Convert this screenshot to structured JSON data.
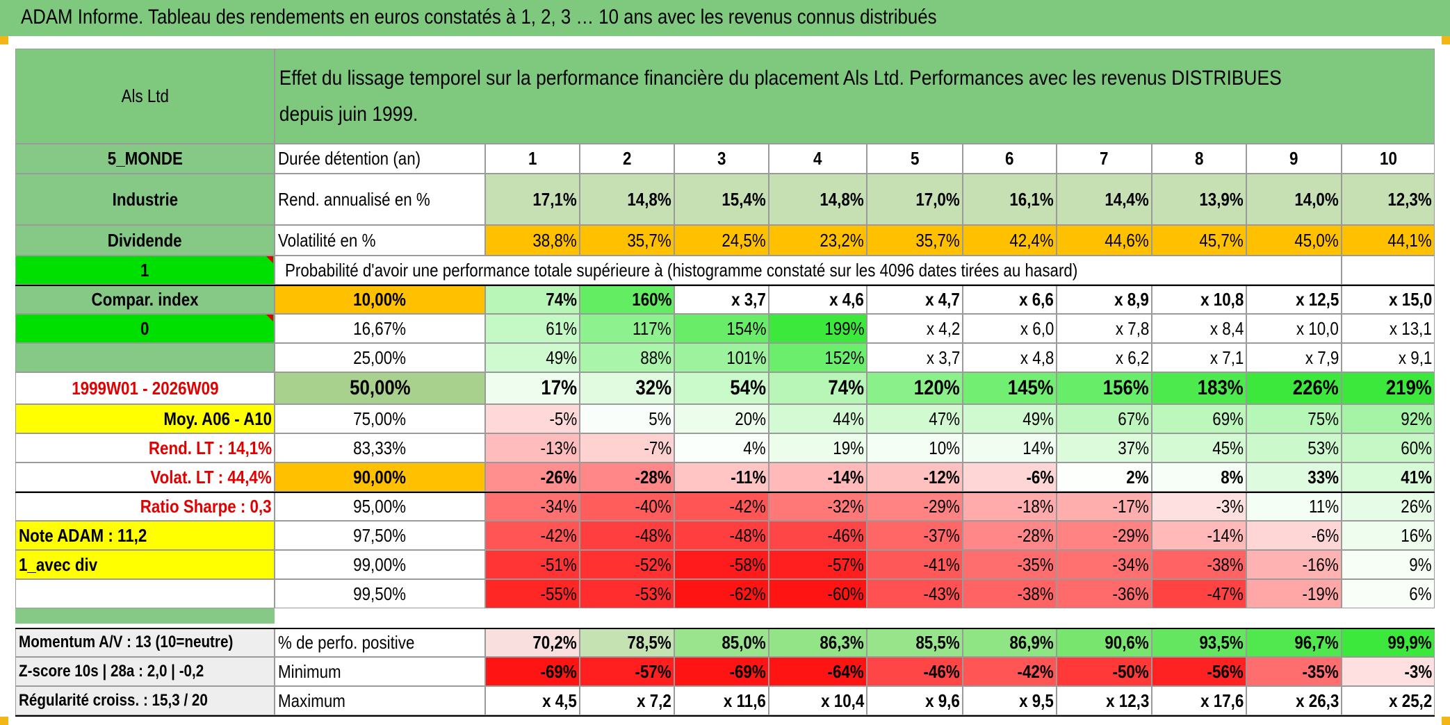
{
  "header": {
    "title": "ADAM Informe. Tableau des rendements en euros constatés à 1, 2, 3 … 10 ans avec les revenus connus distribués",
    "description": "Effet du lissage temporel sur la performance financière du placement Als Ltd. Performances avec les revenus DISTRIBUES depuis juin 1999."
  },
  "left": {
    "name": "Als Ltd",
    "region": "5_MONDE",
    "sector": "Industrie",
    "div_type": "Dividende",
    "flag1": "1",
    "compar": "Compar. index",
    "flag0": "0",
    "period": "1999W01 - 2026W09",
    "moy": "Moy. A06 - A10",
    "rend_lt": "Rend. LT :   14,1%",
    "volat_lt": "Volat. LT :   44,4%",
    "sharpe": "Ratio Sharpe :    0,3",
    "note": "Note ADAM : 11,2",
    "avec_div": "1_avec div",
    "momentum": "Momentum A/V : 13 (10=neutre)",
    "zscore": "Z-score 10s | 28a : 2,0 | -0,2",
    "regularite": "Régularité croiss. : 15,3 / 20"
  },
  "rows": {
    "duree_label": "Durée détention (an)",
    "years": [
      "1",
      "2",
      "3",
      "4",
      "5",
      "6",
      "7",
      "8",
      "9",
      "10"
    ],
    "rend_label": "Rend. annualisé en %",
    "rend": [
      "17,1%",
      "14,8%",
      "15,4%",
      "14,8%",
      "17,0%",
      "16,1%",
      "14,4%",
      "13,9%",
      "14,0%",
      "12,3%"
    ],
    "vol_label": "Volatilité en %",
    "vol": [
      "38,8%",
      "35,7%",
      "24,5%",
      "23,2%",
      "35,7%",
      "42,4%",
      "44,6%",
      "45,7%",
      "45,0%",
      "44,1%"
    ],
    "prob_label": "Probabilité d'avoir une performance totale supérieure à (histogramme constaté sur les 4096 dates tirées au hasard)",
    "percentiles": [
      {
        "p": "10,00%",
        "v": [
          "74%",
          "160%",
          "x 3,7",
          "x 4,6",
          "x 4,7",
          "x 6,6",
          "x 8,9",
          "x 10,8",
          "x 12,5",
          "x 15,0"
        ]
      },
      {
        "p": "16,67%",
        "v": [
          "61%",
          "117%",
          "154%",
          "199%",
          "x 4,2",
          "x 6,0",
          "x 7,8",
          "x 8,4",
          "x 10,0",
          "x 13,1"
        ]
      },
      {
        "p": "25,00%",
        "v": [
          "49%",
          "88%",
          "101%",
          "152%",
          "x 3,7",
          "x 4,8",
          "x 6,2",
          "x 7,1",
          "x 7,9",
          "x 9,1"
        ]
      },
      {
        "p": "50,00%",
        "v": [
          "17%",
          "32%",
          "54%",
          "74%",
          "120%",
          "145%",
          "156%",
          "183%",
          "226%",
          "219%"
        ]
      },
      {
        "p": "75,00%",
        "v": [
          "-5%",
          "5%",
          "20%",
          "44%",
          "47%",
          "49%",
          "67%",
          "69%",
          "75%",
          "92%"
        ]
      },
      {
        "p": "83,33%",
        "v": [
          "-13%",
          "-7%",
          "4%",
          "19%",
          "10%",
          "14%",
          "37%",
          "45%",
          "53%",
          "60%"
        ]
      },
      {
        "p": "90,00%",
        "v": [
          "-26%",
          "-28%",
          "-11%",
          "-14%",
          "-12%",
          "-6%",
          "2%",
          "8%",
          "33%",
          "41%"
        ]
      },
      {
        "p": "95,00%",
        "v": [
          "-34%",
          "-40%",
          "-42%",
          "-32%",
          "-29%",
          "-18%",
          "-17%",
          "-3%",
          "11%",
          "26%"
        ]
      },
      {
        "p": "97,50%",
        "v": [
          "-42%",
          "-48%",
          "-48%",
          "-46%",
          "-37%",
          "-28%",
          "-29%",
          "-14%",
          "-6%",
          "16%"
        ]
      },
      {
        "p": "99,00%",
        "v": [
          "-51%",
          "-52%",
          "-58%",
          "-57%",
          "-41%",
          "-35%",
          "-34%",
          "-38%",
          "-16%",
          "9%"
        ]
      },
      {
        "p": "99,50%",
        "v": [
          "-55%",
          "-53%",
          "-62%",
          "-60%",
          "-43%",
          "-38%",
          "-36%",
          "-47%",
          "-19%",
          "6%"
        ]
      }
    ],
    "pos_label": "% de perfo. positive",
    "pos": [
      "70,2%",
      "78,5%",
      "85,0%",
      "86,3%",
      "85,5%",
      "86,9%",
      "90,6%",
      "93,5%",
      "96,7%",
      "99,9%"
    ],
    "min_label": "Minimum",
    "min": [
      "-69%",
      "-57%",
      "-69%",
      "-64%",
      "-46%",
      "-42%",
      "-50%",
      "-56%",
      "-35%",
      "-3%"
    ],
    "max_label": "Maximum",
    "max": [
      "x 4,5",
      "x 7,2",
      "x 11,6",
      "x 10,4",
      "x 9,6",
      "x 9,5",
      "x 12,3",
      "x 17,6",
      "x 26,3",
      "x 25,2"
    ]
  },
  "colors": {
    "header_green": "#7fc97f",
    "left_green": "#86c986",
    "flag_green": "#00e000",
    "yellow": "#ffff00",
    "orange": "#ffc000",
    "pct50_green": "#a9d18e",
    "rend_green": "#c6e0b4",
    "label_red": "#e00000"
  }
}
